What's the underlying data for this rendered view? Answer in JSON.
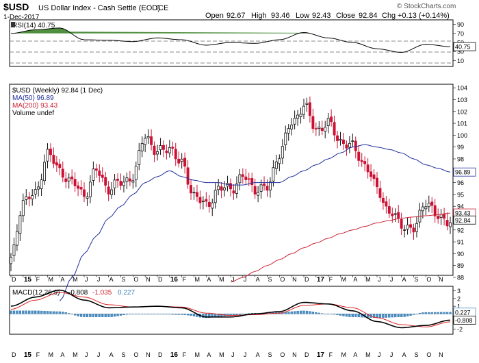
{
  "header": {
    "symbol": "$USD",
    "name": "US Dollar Index - Cash Settle (EOD)",
    "exchange": "ICE",
    "date": "1-Dec-2017",
    "watermark": "© StockCharts.com",
    "open_label": "Open",
    "open": "92.67",
    "high_label": "High",
    "high": "93.46",
    "low_label": "Low",
    "low": "92.43",
    "close_label": "Close",
    "close": "92.84",
    "chg_label": "Chg",
    "chg": "+0.13 (+0.14%)"
  },
  "rsi_panel": {
    "label": "RSI(14) 40.75",
    "last_label": "40.75",
    "ticks": [
      "90",
      "70",
      "50",
      "30",
      "10"
    ]
  },
  "price_panel": {
    "legend": [
      "$USD (Weekly) 92.84 (1 Dec)",
      "MA(50) 96.89",
      "MA(200) 93.43",
      "Volume undef"
    ],
    "last_labels": [
      "96.89",
      "93.43",
      "92.84"
    ],
    "ticks": [
      "104",
      "103",
      "102",
      "101",
      "100",
      "99",
      "98",
      "97",
      "96",
      "95",
      "94",
      "93",
      "92",
      "91",
      "90",
      "89",
      "88"
    ]
  },
  "macd_panel": {
    "label": "MACD(12,26,9)",
    "macd_value": "-0.808",
    "signal_value": "-1.035",
    "hist_value": "0.227",
    "last_labels": [
      "0.227",
      "-0.808"
    ],
    "ticks": [
      "3",
      "2",
      "1",
      "0",
      "-1",
      "-2"
    ]
  },
  "x_axis": {
    "labels": [
      "D",
      "15",
      "F",
      "M",
      "A",
      "M",
      "J",
      "J",
      "A",
      "S",
      "O",
      "N",
      "D",
      "16",
      "F",
      "M",
      "A",
      "M",
      "J",
      "J",
      "A",
      "S",
      "O",
      "N",
      "D",
      "17",
      "F",
      "M",
      "A",
      "M",
      "J",
      "J",
      "A",
      "S",
      "O",
      "N"
    ]
  },
  "colors": {
    "up": "#111111",
    "down": "#cc1133",
    "ma50": "#1f2e9c",
    "ma200": "#cc2233",
    "macd": "#000000",
    "signal": "#dd2222",
    "hist": "#4a90c8",
    "rsi_fill": "#4f8f3f"
  },
  "chart_data": [
    {
      "type": "line",
      "title": "RSI(14) 40.75",
      "ylim": [
        0,
        100
      ],
      "x": [
        "2014-12",
        "2015-02",
        "2015-04",
        "2015-06",
        "2015-08",
        "2015-10",
        "2015-12",
        "2016-02",
        "2016-04",
        "2016-06",
        "2016-08",
        "2016-10",
        "2016-12",
        "2017-02",
        "2017-04",
        "2017-06",
        "2017-08",
        "2017-10",
        "2017-12"
      ],
      "series": [
        {
          "name": "RSI(14)",
          "values": [
            70,
            78,
            82,
            56,
            55,
            52,
            60,
            56,
            44,
            50,
            48,
            56,
            72,
            60,
            50,
            36,
            28,
            46,
            40.75
          ]
        }
      ]
    },
    {
      "type": "line",
      "title": "$USD (Weekly) 92.84 (1 Dec)",
      "ylim": [
        88,
        104
      ],
      "x": [
        "2014-12",
        "2015-01",
        "2015-02",
        "2015-03",
        "2015-04",
        "2015-05",
        "2015-06",
        "2015-07",
        "2015-08",
        "2015-09",
        "2015-10",
        "2015-11",
        "2015-12",
        "2016-01",
        "2016-02",
        "2016-03",
        "2016-04",
        "2016-05",
        "2016-06",
        "2016-07",
        "2016-08",
        "2016-09",
        "2016-10",
        "2016-11",
        "2016-12",
        "2017-01",
        "2017-02",
        "2017-03",
        "2017-04",
        "2017-05",
        "2017-06",
        "2017-07",
        "2017-08",
        "2017-09",
        "2017-10",
        "2017-11",
        "2017-12"
      ],
      "series": [
        {
          "name": "$USD",
          "values": [
            89.5,
            94.5,
            95.0,
            98.5,
            97.0,
            96.0,
            95.0,
            97.0,
            95.5,
            96.0,
            96.5,
            100.0,
            98.5,
            99.0,
            97.5,
            95.0,
            94.0,
            95.5,
            95.5,
            96.5,
            95.5,
            95.5,
            98.5,
            101.0,
            102.5,
            100.5,
            101.0,
            99.5,
            99.0,
            97.5,
            95.5,
            93.5,
            92.5,
            92.0,
            94.5,
            93.0,
            92.84
          ]
        },
        {
          "name": "MA(50)",
          "values": [
            null,
            null,
            null,
            null,
            86.0,
            88.0,
            90.0,
            91.5,
            93.0,
            94.0,
            95.0,
            96.0,
            96.5,
            97.0,
            96.5,
            96.2,
            96.0,
            96.0,
            95.8,
            95.8,
            96.0,
            96.0,
            96.0,
            96.5,
            97.0,
            97.5,
            98.0,
            98.5,
            99.0,
            99.2,
            99.0,
            98.8,
            98.5,
            98.0,
            97.5,
            97.2,
            96.89
          ]
        },
        {
          "name": "MA(200)",
          "values": [
            null,
            null,
            null,
            null,
            null,
            null,
            null,
            null,
            null,
            null,
            null,
            null,
            null,
            null,
            null,
            null,
            null,
            null,
            87.6,
            88.0,
            88.5,
            89.0,
            89.5,
            90.0,
            90.5,
            90.9,
            91.3,
            91.7,
            92.0,
            92.3,
            92.6,
            92.8,
            93.0,
            93.1,
            93.2,
            93.3,
            93.43
          ]
        }
      ]
    },
    {
      "type": "line",
      "title": "MACD(12,26,9) -0.808, -1.035, 0.227",
      "ylim": [
        -2.5,
        3.5
      ],
      "x": [
        "2014-12",
        "2015-02",
        "2015-04",
        "2015-06",
        "2015-08",
        "2015-10",
        "2015-12",
        "2016-02",
        "2016-04",
        "2016-06",
        "2016-08",
        "2016-10",
        "2016-12",
        "2017-02",
        "2017-04",
        "2017-06",
        "2017-08",
        "2017-10",
        "2017-12"
      ],
      "series": [
        {
          "name": "MACD",
          "values": [
            1.0,
            2.2,
            3.1,
            1.8,
            0.8,
            0.9,
            1.0,
            0.8,
            -0.4,
            -0.4,
            0.0,
            0.3,
            1.5,
            1.3,
            0.4,
            -1.0,
            -1.8,
            -1.5,
            -0.808
          ]
        },
        {
          "name": "Signal",
          "values": [
            0.6,
            1.8,
            2.8,
            2.2,
            1.2,
            0.9,
            1.0,
            0.9,
            0.1,
            -0.2,
            -0.1,
            0.1,
            1.1,
            1.3,
            0.8,
            -0.5,
            -1.4,
            -1.7,
            -1.035
          ]
        },
        {
          "name": "Histogram",
          "values": [
            0.4,
            0.4,
            0.3,
            -0.4,
            -0.4,
            0.0,
            0.0,
            -0.1,
            -0.5,
            -0.2,
            0.1,
            0.2,
            0.4,
            0.0,
            -0.4,
            -0.5,
            -0.4,
            0.2,
            0.227
          ]
        }
      ]
    }
  ]
}
